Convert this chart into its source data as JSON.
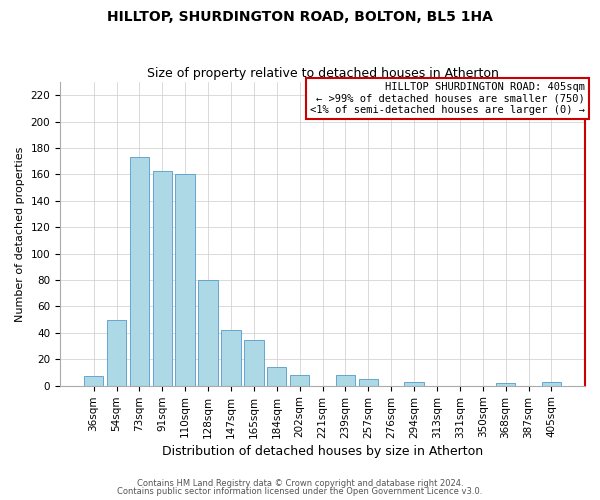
{
  "title": "HILLTOP, SHURDINGTON ROAD, BOLTON, BL5 1HA",
  "subtitle": "Size of property relative to detached houses in Atherton",
  "xlabel": "Distribution of detached houses by size in Atherton",
  "ylabel": "Number of detached properties",
  "bar_color": "#add8e6",
  "bar_edge_color": "#5599cc",
  "categories": [
    "36sqm",
    "54sqm",
    "73sqm",
    "91sqm",
    "110sqm",
    "128sqm",
    "147sqm",
    "165sqm",
    "184sqm",
    "202sqm",
    "221sqm",
    "239sqm",
    "257sqm",
    "276sqm",
    "294sqm",
    "313sqm",
    "331sqm",
    "350sqm",
    "368sqm",
    "387sqm",
    "405sqm"
  ],
  "values": [
    7,
    50,
    173,
    163,
    160,
    80,
    42,
    35,
    14,
    8,
    0,
    8,
    5,
    0,
    3,
    0,
    0,
    0,
    2,
    0,
    3
  ],
  "ylim": [
    0,
    230
  ],
  "yticks": [
    0,
    20,
    40,
    60,
    80,
    100,
    120,
    140,
    160,
    180,
    200,
    220
  ],
  "annotation_box_text_line1": "HILLTOP SHURDINGTON ROAD: 405sqm",
  "annotation_box_text_line2": "← >99% of detached houses are smaller (750)",
  "annotation_box_text_line3": "<1% of semi-detached houses are larger (0) →",
  "annotation_box_edge_color": "#cc0000",
  "footer_line1": "Contains HM Land Registry data © Crown copyright and database right 2024.",
  "footer_line2": "Contains public sector information licensed under the Open Government Licence v3.0.",
  "highlight_bar_color": "#cc0000",
  "background_color": "#ffffff",
  "grid_color": "#cccccc",
  "title_fontsize": 10,
  "subtitle_fontsize": 9,
  "xlabel_fontsize": 9,
  "ylabel_fontsize": 8,
  "tick_fontsize": 7.5,
  "annotation_fontsize": 7.5
}
